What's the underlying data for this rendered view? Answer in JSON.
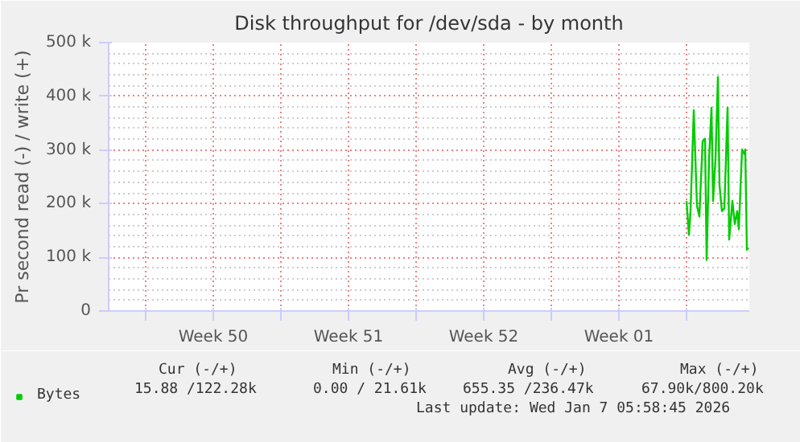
{
  "chart_data": {
    "type": "line",
    "title": "Disk throughput for /dev/sda - by month",
    "ylabel": "Pr second read (-) / write (+)",
    "x": [
      "2026-01-04T00:00",
      "2026-01-04T03:00",
      "2026-01-04T05:00",
      "2026-01-04T09:00",
      "2026-01-04T13:00",
      "2026-01-04T16:00",
      "2026-01-04T20:00",
      "2026-01-04T23:00",
      "2026-01-05T01:00",
      "2026-01-05T04:00",
      "2026-01-05T07:00",
      "2026-01-05T09:00",
      "2026-01-05T12:00",
      "2026-01-05T15:00",
      "2026-01-05T17:00",
      "2026-01-05T20:00",
      "2026-01-05T23:00",
      "2026-01-06T03:00",
      "2026-01-06T05:00",
      "2026-01-06T09:00",
      "2026-01-06T12:00",
      "2026-01-06T15:00",
      "2026-01-06T17:00",
      "2026-01-06T21:00",
      "2026-01-07T00:00",
      "2026-01-07T01:00",
      "2026-01-07T03:00",
      "2026-01-07T05:00"
    ],
    "series": [
      {
        "name": "Bytes",
        "color": "#00cc00",
        "values": [
          205000,
          142000,
          186000,
          374000,
          196000,
          176000,
          316000,
          321000,
          95000,
          283000,
          379000,
          205000,
          283000,
          436000,
          234000,
          186000,
          191000,
          379000,
          133000,
          205000,
          162000,
          186000,
          152000,
          301000,
          292000,
          301000,
          114000,
          118000
        ]
      }
    ],
    "xlim": [
      "2025-12-05T02:00",
      "2026-01-07T06:00"
    ],
    "xticks": [
      {
        "value": "2025-12-07T00:00",
        "label": null
      },
      {
        "value": "2025-12-10T12:00",
        "label": "Week 50"
      },
      {
        "value": "2025-12-14T00:00",
        "label": null
      },
      {
        "value": "2025-12-17T12:00",
        "label": "Week 51"
      },
      {
        "value": "2025-12-21T00:00",
        "label": null
      },
      {
        "value": "2025-12-24T12:00",
        "label": "Week 52"
      },
      {
        "value": "2025-12-28T00:00",
        "label": null
      },
      {
        "value": "2025-12-31T12:00",
        "label": "Week 01"
      },
      {
        "value": "2026-01-04T00:00",
        "label": null
      }
    ],
    "ylim": [
      0,
      500000
    ],
    "yticks": [
      {
        "value": 0,
        "label": "0"
      },
      {
        "value": 100000,
        "label": "100 k"
      },
      {
        "value": 200000,
        "label": "200 k"
      },
      {
        "value": 300000,
        "label": "300 k"
      },
      {
        "value": 400000,
        "label": "400 k"
      },
      {
        "value": 500000,
        "label": "500 k"
      }
    ],
    "grid": true,
    "legend": "bottom left",
    "line_style": "solid",
    "annotations": [
      "Cur (-/+)",
      "Min (-/+)",
      "Avg (-/+)",
      "Max (-/+)",
      "15.88 /122.28k",
      "0.00 / 21.61k",
      "655.35 /236.47k",
      "67.90k/800.20k",
      "Last update: Wed Jan  7 05:58:45 2026"
    ]
  }
}
